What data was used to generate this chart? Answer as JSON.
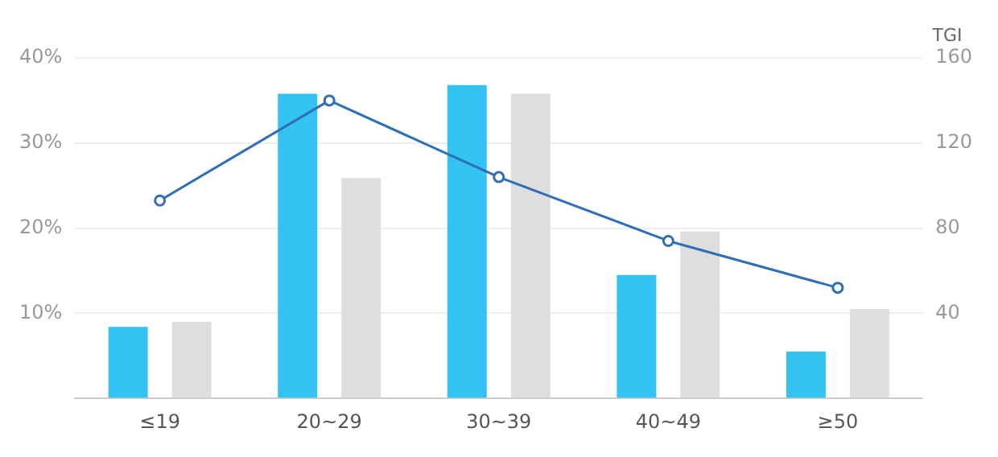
{
  "chart_data": {
    "type": "bar",
    "categories": [
      "≤19",
      "20~29",
      "30~39",
      "40~49",
      "≥50"
    ],
    "series": [
      {
        "color": "#33c3f3",
        "values": [
          8.4,
          35.8,
          36.8,
          14.5,
          5.5
        ]
      },
      {
        "color": "#dedede",
        "values": [
          9,
          25.9,
          35.8,
          19.6,
          10.5
        ]
      },
      {
        "type": "line",
        "color": "#2e6fb7",
        "axis": "y2",
        "values": [
          93,
          140,
          104,
          74,
          52
        ]
      }
    ],
    "y2label": "TGI",
    "ylim": [
      0,
      40
    ],
    "yticks": [
      {
        "value": 0,
        "label": null
      },
      {
        "value": 10,
        "label": "10%"
      },
      {
        "value": 20,
        "label": "20%"
      },
      {
        "value": 30,
        "label": "30%"
      },
      {
        "value": 40,
        "label": "40%"
      }
    ],
    "y2lim": [
      0,
      160
    ],
    "y2ticks": [
      40,
      80,
      120,
      160
    ],
    "grid": "y",
    "marker": "circle",
    "line_style": "solid"
  }
}
